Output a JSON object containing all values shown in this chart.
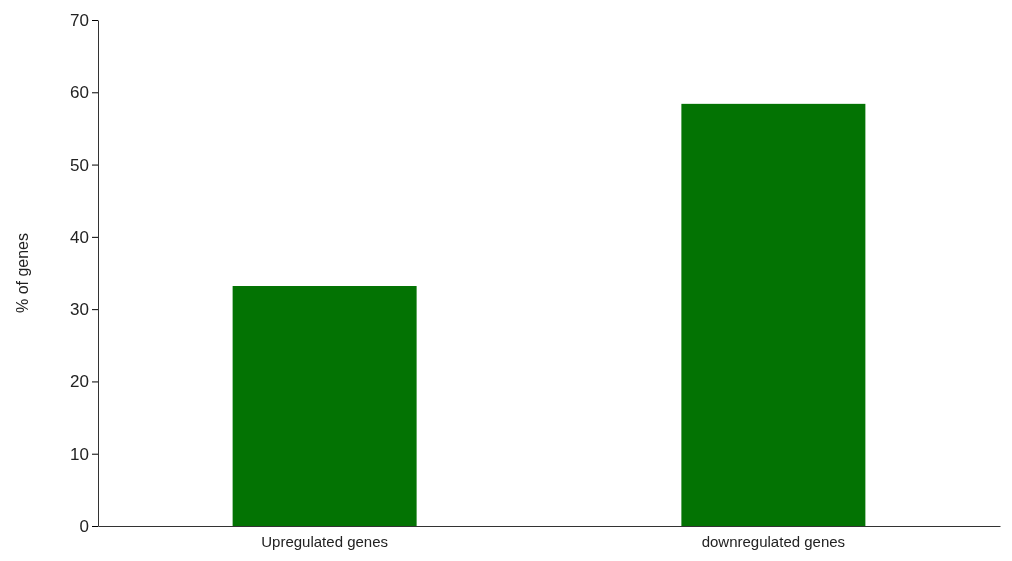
{
  "chart_data": {
    "type": "bar",
    "ylabel": "% of genes",
    "categories": [
      "Upregulated genes",
      "downregulated genes"
    ],
    "values": [
      33.2,
      58.4
    ],
    "color": "#037303",
    "ylim": [
      0,
      70
    ],
    "yticks": [
      0,
      10,
      20,
      30,
      40,
      50,
      60,
      70
    ],
    "grid": false
  }
}
